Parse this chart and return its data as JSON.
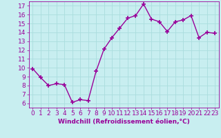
{
  "x": [
    0,
    1,
    2,
    3,
    4,
    5,
    6,
    7,
    8,
    9,
    10,
    11,
    12,
    13,
    14,
    15,
    16,
    17,
    18,
    19,
    20,
    21,
    22,
    23
  ],
  "y": [
    9.9,
    8.9,
    8.0,
    8.2,
    8.1,
    6.1,
    6.4,
    6.3,
    9.6,
    12.1,
    13.4,
    14.5,
    15.6,
    15.9,
    17.2,
    15.5,
    15.2,
    14.1,
    15.2,
    15.4,
    15.9,
    13.4,
    14.0,
    13.9
  ],
  "line_color": "#990099",
  "marker": "+",
  "marker_size": 4,
  "bg_color": "#c8eef0",
  "grid_color": "#aadddd",
  "xlabel": "Windchill (Refroidissement éolien,°C)",
  "xlabel_color": "#990099",
  "tick_color": "#990099",
  "ylim": [
    5.5,
    17.5
  ],
  "xlim": [
    -0.5,
    23.5
  ],
  "yticks": [
    6,
    7,
    8,
    9,
    10,
    11,
    12,
    13,
    14,
    15,
    16,
    17
  ],
  "xticks": [
    0,
    1,
    2,
    3,
    4,
    5,
    6,
    7,
    8,
    9,
    10,
    11,
    12,
    13,
    14,
    15,
    16,
    17,
    18,
    19,
    20,
    21,
    22,
    23
  ],
  "line_width": 1.0,
  "font_size": 6.5
}
